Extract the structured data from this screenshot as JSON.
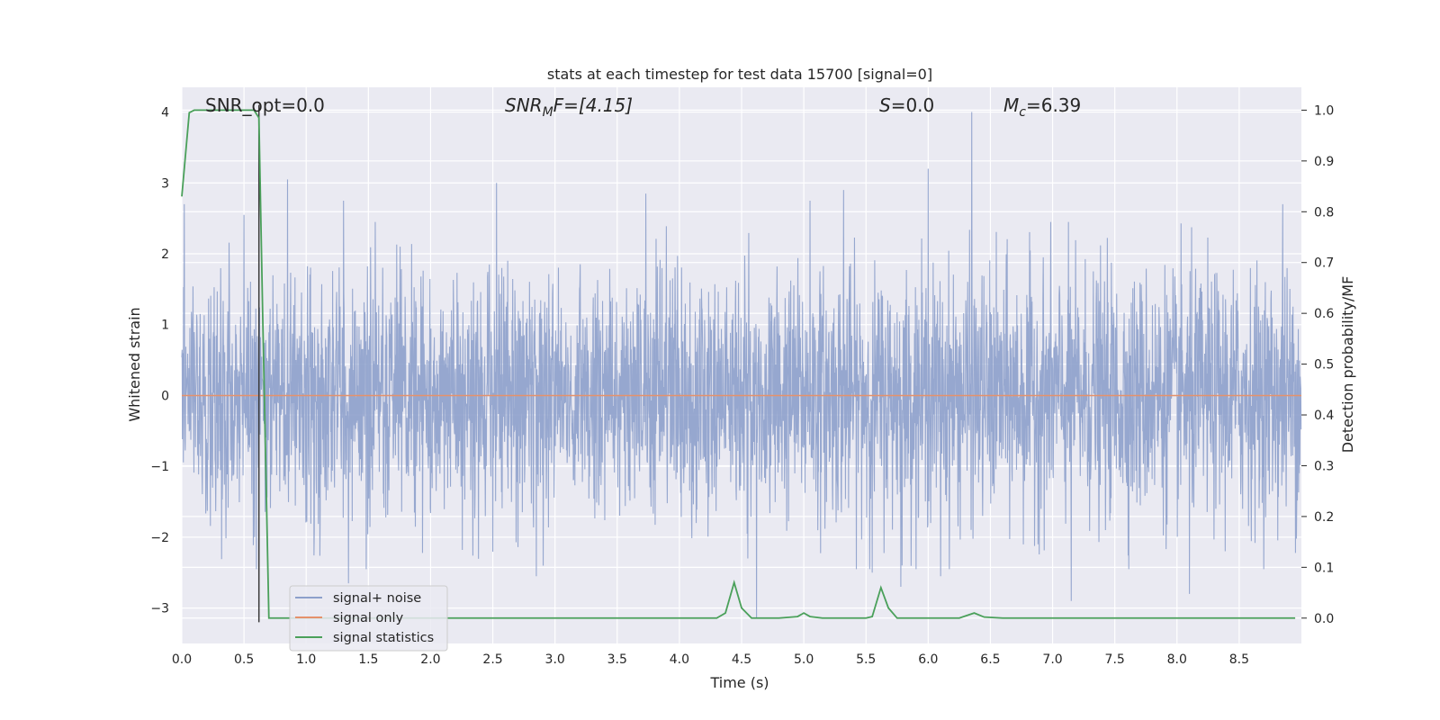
{
  "chart_data": {
    "type": "line",
    "title": "stats at each timestep for test data 15700 [signal=0]",
    "xlabel": "Time (s)",
    "ylabel": "Whitened strain",
    "y2label": "Detection probability/MF",
    "xlim": [
      0.0,
      9.0
    ],
    "ylim": [
      -3.5,
      4.35
    ],
    "y2lim": [
      -0.05,
      1.045
    ],
    "xticks": [
      "0.0",
      "0.5",
      "1.0",
      "1.5",
      "2.0",
      "2.5",
      "3.0",
      "3.5",
      "4.0",
      "4.5",
      "5.0",
      "5.5",
      "6.0",
      "6.5",
      "7.0",
      "7.5",
      "8.0",
      "8.5"
    ],
    "yticks": [
      "4",
      "3",
      "2",
      "1",
      "0",
      "−1",
      "−2",
      "−3"
    ],
    "y2ticks": [
      "1.0",
      "0.9",
      "0.8",
      "0.7",
      "0.6",
      "0.5",
      "0.4",
      "0.3",
      "0.2",
      "0.1",
      "0.0"
    ],
    "annotations": {
      "snr_opt": "SNR_opt=0.0",
      "snr_mf_main": "SNR",
      "snr_mf_sub": "M",
      "snr_mf_tail": "F=[4.15]",
      "s_main": "S",
      "s_tail": "=0.0",
      "mc_main": "M",
      "mc_sub": "c",
      "mc_tail": "=6.39"
    },
    "marker_line_x": 0.62,
    "series": [
      {
        "name": "signal+ noise",
        "color": "#8da0cb",
        "noise_std": 0.85,
        "spikes": [
          {
            "x": 0.02,
            "y": 2.7
          },
          {
            "x": 0.5,
            "y": 2.55
          },
          {
            "x": 0.85,
            "y": 3.05
          },
          {
            "x": 1.3,
            "y": 2.75
          },
          {
            "x": 1.34,
            "y": -2.65
          },
          {
            "x": 2.53,
            "y": 3.0
          },
          {
            "x": 2.85,
            "y": -2.55
          },
          {
            "x": 3.73,
            "y": 2.85
          },
          {
            "x": 4.55,
            "y": -2.3
          },
          {
            "x": 4.62,
            "y": -3.15
          },
          {
            "x": 5.05,
            "y": 2.75
          },
          {
            "x": 5.32,
            "y": 2.9
          },
          {
            "x": 5.55,
            "y": -2.5
          },
          {
            "x": 5.78,
            "y": -2.7
          },
          {
            "x": 6.0,
            "y": 3.2
          },
          {
            "x": 6.1,
            "y": -2.55
          },
          {
            "x": 6.35,
            "y": 4.0
          },
          {
            "x": 7.15,
            "y": -2.9
          },
          {
            "x": 8.1,
            "y": -2.8
          },
          {
            "x": 8.85,
            "y": 2.7
          }
        ]
      },
      {
        "name": "signal only",
        "color": "#e5916b",
        "value": 0.0
      },
      {
        "name": "signal statistics",
        "color": "#4aa05a",
        "x": [
          0.0,
          0.06,
          0.1,
          0.15,
          0.2,
          0.25,
          0.3,
          0.35,
          0.4,
          0.45,
          0.5,
          0.55,
          0.58,
          0.62,
          0.65,
          0.7,
          0.75,
          0.8,
          1.0,
          2.0,
          3.0,
          4.0,
          4.3,
          4.37,
          4.44,
          4.5,
          4.58,
          4.65,
          4.8,
          4.95,
          5.0,
          5.05,
          5.15,
          5.5,
          5.55,
          5.62,
          5.68,
          5.75,
          5.85,
          6.0,
          6.25,
          6.37,
          6.45,
          6.6,
          7.0,
          7.5,
          8.0,
          8.5,
          8.95
        ],
        "values": [
          0.83,
          0.995,
          1.0,
          1.0,
          1.0,
          1.0,
          1.0,
          1.0,
          1.0,
          1.0,
          1.0,
          1.0,
          1.0,
          0.985,
          0.6,
          0.0,
          0.0,
          0.0,
          0.0,
          0.0,
          0.0,
          0.0,
          0.0,
          0.01,
          0.07,
          0.02,
          0.0,
          0.0,
          0.0,
          0.003,
          0.01,
          0.003,
          0.0,
          0.0,
          0.003,
          0.06,
          0.02,
          0.0,
          0.0,
          0.0,
          0.0,
          0.01,
          0.002,
          0.0,
          0.0,
          0.0,
          0.0,
          0.0,
          0.0
        ]
      }
    ],
    "legend": {
      "placement": "lower-left",
      "entries": [
        "signal+ noise",
        "signal only",
        "signal statistics"
      ]
    },
    "grid": true,
    "colors": {
      "plot_background": "#eaeaf2",
      "grid": "#ffffff",
      "marker_line": "#3a3a3a"
    }
  }
}
